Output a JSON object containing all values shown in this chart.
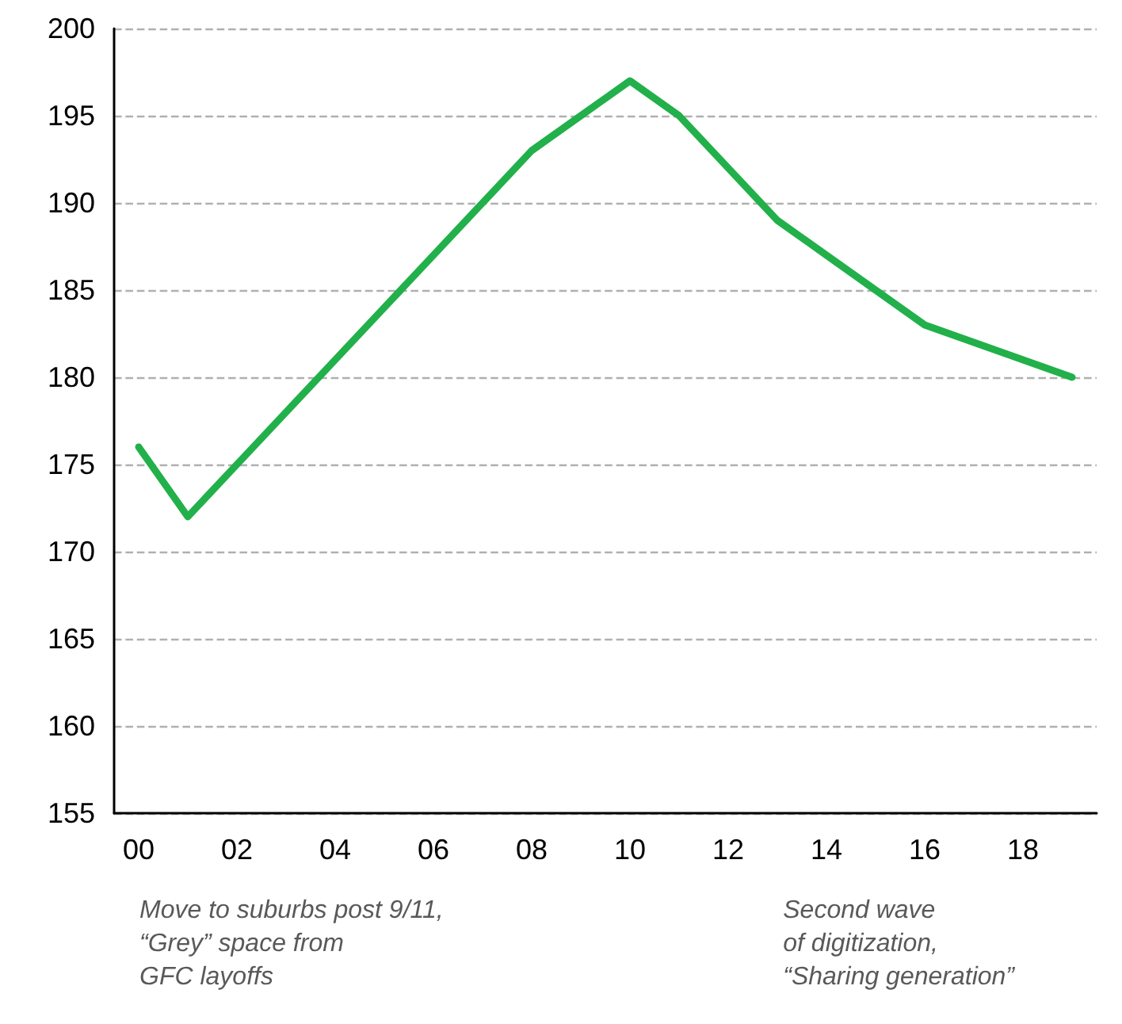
{
  "chart_data": {
    "type": "line",
    "categories": [
      "00",
      null,
      "02",
      null,
      "04",
      null,
      "06",
      null,
      "08",
      null,
      "10",
      null,
      "12",
      null,
      "14",
      null,
      "16",
      null,
      "18",
      null
    ],
    "series": [
      {
        "color": "#22b04b",
        "values": [
          176,
          172,
          175,
          178,
          181,
          184,
          187,
          190,
          193,
          195,
          197,
          195,
          192,
          189,
          187,
          185,
          183,
          182,
          181,
          180
        ]
      }
    ],
    "ylim": [
      155,
      200
    ],
    "yticks": [
      155,
      160,
      165,
      170,
      175,
      180,
      185,
      190,
      195,
      200
    ],
    "grid": "y",
    "marker": "none",
    "line_style": "solid",
    "annotations": [
      "Move to suburbs post 9/11,\n“Grey” space from\nGFC layoffs",
      "Second wave\nof digitization,\n“Sharing generation”"
    ]
  }
}
